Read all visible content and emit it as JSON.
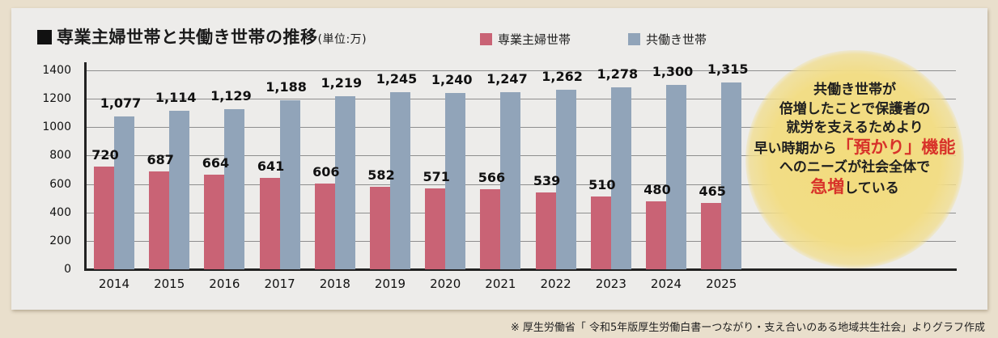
{
  "title": {
    "main": "専業主婦世帯と共働き世帯の推移",
    "unit": "(単位:万)"
  },
  "legend": [
    {
      "label": "専業主婦世帯",
      "color": "#c96375"
    },
    {
      "label": "共働き世帯",
      "color": "#91a4b9"
    }
  ],
  "y_ticks": [
    "0",
    "200",
    "400",
    "600",
    "800",
    "1000",
    "1200",
    "1400"
  ],
  "callout": {
    "line1": "共働き世帯が",
    "line2": "倍増したことで保護者の",
    "line3": "就労を支えるためより",
    "line4_pre": "早い時期から",
    "line4_em": "「預かり」機能",
    "line5": "へのニーズが社会全体で",
    "line6_em": "急増",
    "line6_post": "している"
  },
  "source": "※ 厚生労働省「 令和5年版厚生労働白書ーつながり・支え合いのある地域共生社会」よりグラフ作成",
  "chart_data": {
    "type": "bar",
    "title": "専業主婦世帯と共働き世帯の推移(単位:万)",
    "xlabel": "",
    "ylabel": "",
    "ylim": [
      0,
      1400
    ],
    "grid": true,
    "legend_position": "top",
    "categories": [
      "2014",
      "2015",
      "2016",
      "2017",
      "2018",
      "2019",
      "2020",
      "2021",
      "2022",
      "2023",
      "2024",
      "2025"
    ],
    "series": [
      {
        "name": "専業主婦世帯",
        "values": [
          720,
          687,
          664,
          641,
          606,
          582,
          571,
          566,
          539,
          510,
          480,
          465
        ],
        "labels": [
          "720",
          "687",
          "664",
          "641",
          "606",
          "582",
          "571",
          "566",
          "539",
          "510",
          "480",
          "465"
        ]
      },
      {
        "name": "共働き世帯",
        "values": [
          1077,
          1114,
          1129,
          1188,
          1219,
          1245,
          1240,
          1247,
          1262,
          1278,
          1300,
          1315
        ],
        "labels": [
          "1,077",
          "1,114",
          "1,129",
          "1,188",
          "1,219",
          "1,245",
          "1,240",
          "1,247",
          "1,262",
          "1,278",
          "1,300",
          "1,315"
        ]
      }
    ]
  }
}
